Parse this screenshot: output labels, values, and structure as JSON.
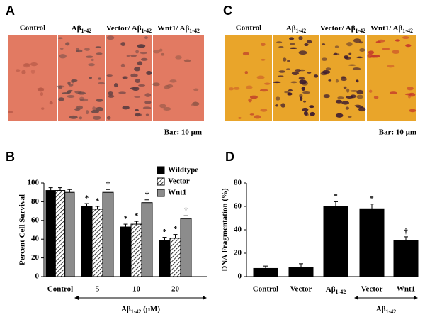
{
  "panels": [
    {
      "label": "A",
      "columns": [
        "Control",
        {
          "text": "Aβ",
          "sub": "1-42"
        },
        {
          "text": "Vector/ Aβ",
          "sub": "1-42"
        },
        {
          "text": "Wnt1/ Aβ",
          "sub": "1-42"
        }
      ],
      "scale_bar": "Bar: 10 μm"
    },
    {
      "label": "C",
      "columns": [
        "Control",
        {
          "text": "Aβ",
          "sub": "1-42"
        },
        {
          "text": "Vector/ Aβ",
          "sub": "1-42"
        },
        {
          "text": "Wnt1/ Aβ",
          "sub": "1-42"
        }
      ],
      "scale_bar": "Bar: 10 μm"
    }
  ],
  "chart_data": [
    {
      "type": "bar",
      "panel_label": "B",
      "y_label": "Percent Cell Survival",
      "categories": [
        "Control",
        "5",
        "10",
        "20"
      ],
      "group_label": {
        "text": "Aβ",
        "sub": "1-42",
        "suffix": " (μM)"
      },
      "series": [
        {
          "name": "Wildtype",
          "color": "#000000",
          "values": [
            92,
            75,
            53,
            39
          ],
          "errors": [
            3,
            3,
            3,
            3
          ],
          "markers": [
            null,
            "*",
            "*",
            "*"
          ]
        },
        {
          "name": "Vector",
          "color": "#ffffff",
          "hatch": true,
          "values": [
            92,
            72,
            56,
            41
          ],
          "errors": [
            3,
            3,
            3,
            4
          ],
          "markers": [
            null,
            "*",
            "*",
            "*"
          ]
        },
        {
          "name": "Wnt1",
          "color": "#8c8c8c",
          "values": [
            90,
            90,
            79,
            62
          ],
          "errors": [
            3,
            3,
            3,
            3
          ],
          "markers": [
            null,
            "†",
            "†",
            "†"
          ]
        }
      ],
      "ylim": [
        0,
        100
      ],
      "yticks": [
        0,
        20,
        40,
        60,
        80,
        100
      ],
      "legend": "top-right"
    },
    {
      "type": "bar",
      "panel_label": "D",
      "y_label": "DNA Fragmentation (%)",
      "categories": [
        "Control",
        "Vector",
        {
          "text": "Aβ",
          "sub": "1-42"
        },
        "Vector",
        "Wnt1"
      ],
      "group_label": {
        "text": "Aβ",
        "sub": "1-42"
      },
      "series": [
        {
          "color": "#000000",
          "values": [
            7,
            8,
            60,
            58,
            31
          ],
          "errors": [
            2,
            3,
            4,
            4,
            3
          ],
          "markers": [
            null,
            null,
            "*",
            "*",
            "†"
          ]
        }
      ],
      "ylim": [
        0,
        80
      ],
      "yticks": [
        0,
        20,
        40,
        60,
        80
      ]
    }
  ]
}
